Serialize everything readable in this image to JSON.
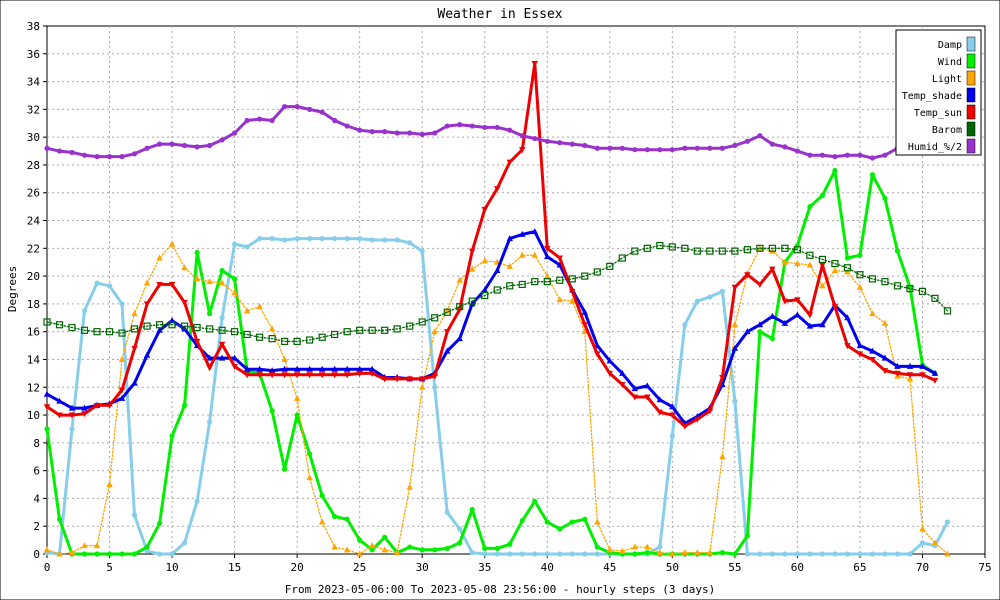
{
  "chart_data": {
    "type": "line",
    "title": "Weather in Essex",
    "xlabel": "From 2023-05-06:00 To 2023-05-08 23:56:00 - hourly steps (3 days)",
    "ylabel": "Degrees",
    "xlim": [
      0,
      75
    ],
    "ylim": [
      0,
      38
    ],
    "xticks": [
      "0",
      "5",
      "10",
      "15",
      "20",
      "25",
      "30",
      "35",
      "40",
      "45",
      "50",
      "55",
      "60",
      "65",
      "70",
      "75"
    ],
    "yticks": [
      "0",
      "2",
      "4",
      "6",
      "8",
      "10",
      "12",
      "14",
      "16",
      "18",
      "20",
      "22",
      "24",
      "26",
      "28",
      "30",
      "32",
      "34",
      "36",
      "38"
    ],
    "grid": true,
    "legend_position": "top-right",
    "series": [
      {
        "name": "Damp",
        "color": "#87ceeb",
        "style": "solid",
        "marker": "circle",
        "values": [
          0.1,
          0,
          9,
          17.5,
          19.5,
          19.3,
          18,
          2.8,
          0.2,
          0,
          0,
          0.8,
          3.8,
          9.5,
          17,
          22.3,
          22.1,
          22.7,
          22.7,
          22.6,
          22.7,
          22.7,
          22.7,
          22.7,
          22.7,
          22.7,
          22.6,
          22.6,
          22.6,
          22.4,
          21.8,
          12,
          3,
          1.8,
          0.1,
          0,
          0,
          0,
          0,
          0,
          0,
          0,
          0,
          0,
          0,
          0,
          0,
          0,
          0,
          0.5,
          8.5,
          16.5,
          18.2,
          18.5,
          18.9,
          11,
          0,
          0,
          0,
          0,
          0,
          0,
          0,
          0,
          0,
          0,
          0,
          0,
          0,
          0,
          0.8,
          0.6,
          2.3
        ]
      },
      {
        "name": "Wind",
        "color": "#00ee00",
        "style": "solid",
        "marker": "circle",
        "values": [
          9,
          2.5,
          0,
          0,
          0,
          0,
          0,
          0,
          0.5,
          2.2,
          8.5,
          10.7,
          21.7,
          17.3,
          20.4,
          19.8,
          13.2,
          13,
          10.3,
          6.1,
          10,
          7.2,
          4.2,
          2.7,
          2.5,
          1,
          0.3,
          1.2,
          0.1,
          0.5,
          0.3,
          0.3,
          0.4,
          0.8,
          3.2,
          0.4,
          0.4,
          0.7,
          2.4,
          3.8,
          2.3,
          1.8,
          2.3,
          2.5,
          0.5,
          0.1,
          0,
          0,
          0.1,
          0,
          0,
          0,
          0,
          0,
          0.1,
          0,
          1.3,
          16,
          15.5,
          21,
          22.2,
          25,
          25.8,
          27.6,
          21.3,
          21.5,
          27.3,
          25.6,
          21.8,
          19.2,
          13.6,
          13
        ]
      },
      {
        "name": "Light",
        "color": "#ffa500",
        "style": "dotted",
        "marker": "triangle",
        "values": [
          0.3,
          0,
          0.1,
          0.6,
          0.6,
          5,
          14,
          17.3,
          19.5,
          21.3,
          22.3,
          20.6,
          19.8,
          19.6,
          19.5,
          18.8,
          17.5,
          17.8,
          16.2,
          14,
          11.2,
          5.5,
          2.3,
          0.5,
          0.3,
          0,
          0.6,
          0.3,
          0.1,
          4.8,
          12,
          16,
          17.5,
          19.7,
          20.5,
          21.1,
          21,
          20.7,
          21.5,
          21.5,
          20,
          18.3,
          18.2,
          16,
          2.3,
          0.3,
          0.2,
          0.5,
          0.5,
          0.1,
          0,
          0.1,
          0.1,
          0.1,
          7,
          16.5,
          20.2,
          22,
          21.8,
          21,
          20.9,
          20.8,
          19.3,
          20.4,
          20.3,
          19.2,
          17.3,
          16.6,
          12.8,
          12.6,
          1.8,
          0.8,
          0
        ]
      },
      {
        "name": "Temp_shade",
        "color": "#0000ee",
        "style": "solid",
        "marker": "triangle",
        "values": [
          11.5,
          11,
          10.5,
          10.5,
          10.7,
          10.8,
          11.2,
          12.3,
          14.3,
          16.1,
          16.8,
          16.2,
          15,
          14.1,
          14.1,
          14.1,
          13.3,
          13.3,
          13.2,
          13.3,
          13.3,
          13.3,
          13.3,
          13.3,
          13.3,
          13.3,
          13.3,
          12.7,
          12.7,
          12.6,
          12.6,
          13,
          14.6,
          15.5,
          18,
          19,
          20.4,
          22.7,
          23,
          23.2,
          21.4,
          20.8,
          19,
          17.4,
          15,
          13.9,
          13,
          11.9,
          12.1,
          11.1,
          10.6,
          9.4,
          9.9,
          10.5,
          12.2,
          14.8,
          16,
          16.5,
          17.1,
          16.6,
          17.2,
          16.4,
          16.5,
          17.9,
          17,
          15,
          14.6,
          14.1,
          13.5,
          13.5,
          13.5,
          13
        ]
      },
      {
        "name": "Temp_sun",
        "color": "#ee0000",
        "style": "solid",
        "marker": "triangle-down",
        "values": [
          10.6,
          10,
          10,
          10.1,
          10.7,
          10.7,
          11.8,
          14.8,
          18,
          19.4,
          19.4,
          18.1,
          15.3,
          13.4,
          15.1,
          13.5,
          12.9,
          12.9,
          12.9,
          12.9,
          12.9,
          12.9,
          12.9,
          12.9,
          12.9,
          13,
          13,
          12.6,
          12.6,
          12.6,
          12.6,
          12.8,
          16,
          17.6,
          21.8,
          24.8,
          26.3,
          28.2,
          29.1,
          35.3,
          22,
          21.3,
          18.9,
          16.5,
          14.4,
          13,
          12.2,
          11.3,
          11.3,
          10.2,
          10,
          9.2,
          9.7,
          10.3,
          12.7,
          19.2,
          20.1,
          19.4,
          20.5,
          18.2,
          18.3,
          17.2,
          20.8,
          17.8,
          15,
          14.4,
          14,
          13.2,
          13,
          12.9,
          12.9,
          12.5
        ]
      },
      {
        "name": "Barom",
        "color": "#006600",
        "style": "dotted",
        "marker": "square",
        "values": [
          16.7,
          16.5,
          16.3,
          16.1,
          16,
          16,
          15.9,
          16.2,
          16.4,
          16.5,
          16.5,
          16.4,
          16.3,
          16.2,
          16.1,
          16,
          15.8,
          15.6,
          15.5,
          15.3,
          15.3,
          15.4,
          15.6,
          15.8,
          16,
          16.1,
          16.1,
          16.1,
          16.2,
          16.4,
          16.7,
          17,
          17.4,
          17.8,
          18.2,
          18.6,
          19,
          19.3,
          19.4,
          19.6,
          19.6,
          19.7,
          19.8,
          20,
          20.3,
          20.7,
          21.3,
          21.8,
          22,
          22.2,
          22.1,
          22,
          21.8,
          21.8,
          21.8,
          21.8,
          21.9,
          22,
          22,
          22,
          21.9,
          21.5,
          21.2,
          20.9,
          20.6,
          20.1,
          19.8,
          19.6,
          19.3,
          19.1,
          18.9,
          18.4,
          17.5
        ]
      },
      {
        "name": "Humid_%/2",
        "color": "#9932cc",
        "style": "solid",
        "marker": "circle",
        "values": [
          29.2,
          29,
          28.9,
          28.7,
          28.6,
          28.6,
          28.6,
          28.8,
          29.2,
          29.5,
          29.5,
          29.4,
          29.3,
          29.4,
          29.8,
          30.3,
          31.2,
          31.3,
          31.2,
          32.2,
          32.2,
          32,
          31.8,
          31.2,
          30.8,
          30.5,
          30.4,
          30.4,
          30.3,
          30.3,
          30.2,
          30.3,
          30.8,
          30.9,
          30.8,
          30.7,
          30.7,
          30.5,
          30.1,
          29.9,
          29.7,
          29.6,
          29.5,
          29.4,
          29.2,
          29.2,
          29.2,
          29.1,
          29.1,
          29.1,
          29.1,
          29.2,
          29.2,
          29.2,
          29.2,
          29.4,
          29.7,
          30.1,
          29.5,
          29.3,
          29,
          28.7,
          28.7,
          28.6,
          28.7,
          28.7,
          28.5,
          28.7,
          29.2,
          29.5,
          30.1,
          29.5
        ]
      }
    ]
  }
}
